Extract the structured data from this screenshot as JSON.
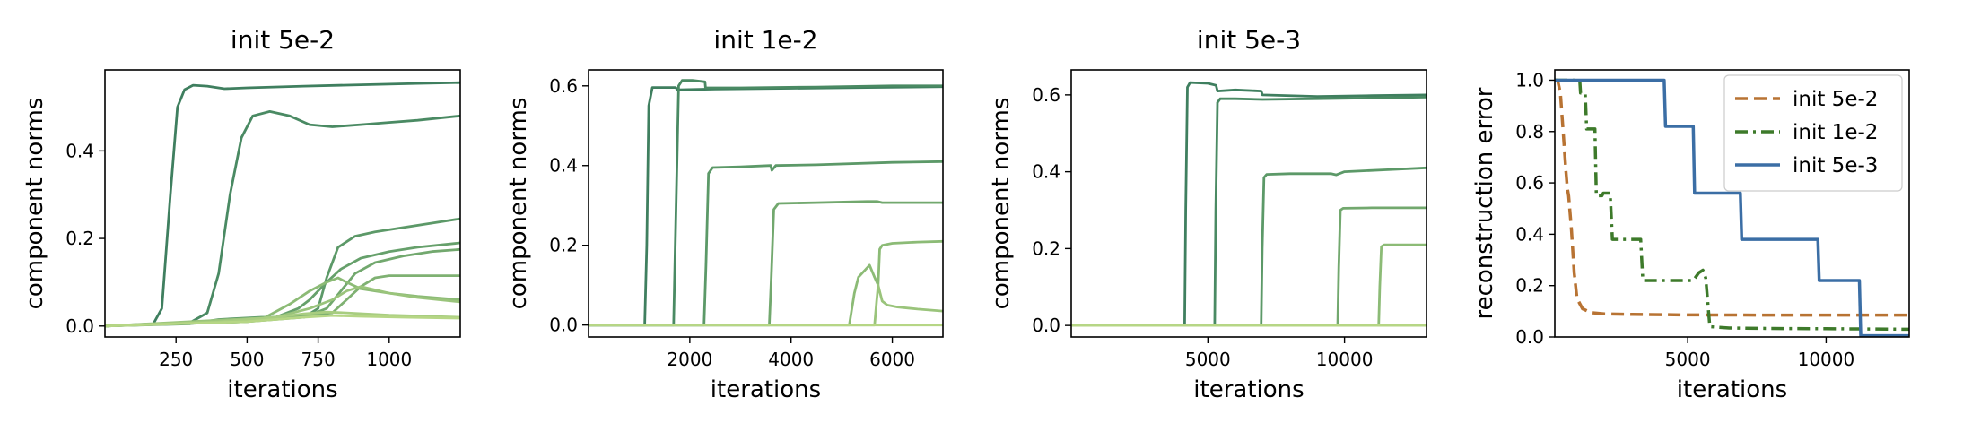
{
  "chart_data": [
    {
      "type": "line",
      "title": "init 5e-2",
      "xlabel": "iterations",
      "ylabel": "component norms",
      "xlim": [
        0,
        1250
      ],
      "ylim": [
        -0.025,
        0.585
      ],
      "xticks": [
        250,
        500,
        750,
        1000
      ],
      "xtick_labels": [
        "250",
        "500",
        "750",
        "1000"
      ],
      "yticks": [
        0,
        0.2,
        0.4
      ],
      "ytick_labels": [
        "0.0",
        "0.2",
        "0.4"
      ],
      "grid": false,
      "colors": [
        "#3f7f5f",
        "#4a8a63",
        "#5c9968",
        "#66a06b",
        "#72a86e",
        "#7fb172",
        "#8cbb76",
        "#9ac47b",
        "#a8cd80",
        "#b6d685"
      ],
      "series": [
        {
          "x": [
            0,
            170,
            200,
            230,
            255,
            280,
            310,
            360,
            420,
            500,
            700,
            900,
            1100,
            1250
          ],
          "y": [
            0,
            0.005,
            0.04,
            0.3,
            0.5,
            0.54,
            0.55,
            0.548,
            0.542,
            0.544,
            0.548,
            0.551,
            0.554,
            0.556
          ]
        },
        {
          "x": [
            0,
            300,
            360,
            400,
            440,
            480,
            520,
            580,
            650,
            720,
            800,
            900,
            1000,
            1100,
            1250
          ],
          "y": [
            0,
            0.008,
            0.03,
            0.12,
            0.3,
            0.43,
            0.48,
            0.49,
            0.48,
            0.46,
            0.455,
            0.46,
            0.465,
            0.47,
            0.48
          ]
        },
        {
          "x": [
            0,
            300,
            400,
            550,
            700,
            750,
            780,
            820,
            880,
            950,
            1050,
            1150,
            1250
          ],
          "y": [
            0,
            0.005,
            0.015,
            0.02,
            0.02,
            0.04,
            0.11,
            0.18,
            0.205,
            0.215,
            0.225,
            0.235,
            0.245
          ]
        },
        {
          "x": [
            0,
            400,
            600,
            680,
            720,
            780,
            830,
            900,
            1000,
            1100,
            1250
          ],
          "y": [
            0,
            0.01,
            0.02,
            0.04,
            0.06,
            0.1,
            0.13,
            0.155,
            0.17,
            0.18,
            0.19
          ]
        },
        {
          "x": [
            0,
            500,
            700,
            780,
            830,
            880,
            950,
            1050,
            1150,
            1250
          ],
          "y": [
            0,
            0.01,
            0.02,
            0.04,
            0.08,
            0.12,
            0.145,
            0.16,
            0.17,
            0.175
          ]
        },
        {
          "x": [
            0,
            500,
            800,
            850,
            900,
            950,
            1000,
            1100,
            1250
          ],
          "y": [
            0,
            0.01,
            0.03,
            0.06,
            0.09,
            0.11,
            0.115,
            0.115,
            0.115
          ]
        },
        {
          "x": [
            0,
            550,
            650,
            720,
            780,
            800,
            820,
            850,
            900,
            1000,
            1100,
            1250
          ],
          "y": [
            0,
            0.015,
            0.05,
            0.08,
            0.1,
            0.105,
            0.11,
            0.1,
            0.085,
            0.075,
            0.068,
            0.06
          ]
        },
        {
          "x": [
            0,
            600,
            720,
            800,
            850,
            900,
            1000,
            1100,
            1250
          ],
          "y": [
            0,
            0.02,
            0.04,
            0.06,
            0.08,
            0.09,
            0.075,
            0.065,
            0.055
          ]
        },
        {
          "x": [
            0,
            400,
            600,
            700,
            780,
            850,
            1000,
            1250
          ],
          "y": [
            0,
            0.01,
            0.02,
            0.028,
            0.032,
            0.03,
            0.025,
            0.02
          ]
        },
        {
          "x": [
            0,
            500,
            700,
            800,
            900,
            1050,
            1250
          ],
          "y": [
            0,
            0.01,
            0.02,
            0.024,
            0.022,
            0.02,
            0.018
          ]
        }
      ]
    },
    {
      "type": "line",
      "title": "init 1e-2",
      "xlabel": "iterations",
      "ylabel": "component norms",
      "xlim": [
        0,
        7000
      ],
      "ylim": [
        -0.03,
        0.64
      ],
      "xticks": [
        2000,
        4000,
        6000
      ],
      "xtick_labels": [
        "2000",
        "4000",
        "6000"
      ],
      "yticks": [
        0,
        0.2,
        0.4,
        0.6
      ],
      "ytick_labels": [
        "0.0",
        "0.2",
        "0.4",
        "0.6"
      ],
      "grid": false,
      "colors": [
        "#3f7f5f",
        "#4a8a63",
        "#5c9968",
        "#72a86e",
        "#8cbb76",
        "#9ac47b",
        "#b6d685"
      ],
      "series": [
        {
          "x": [
            0,
            1110,
            1150,
            1190,
            1260,
            1650,
            1720,
            1760,
            2500,
            4000,
            5500,
            7000
          ],
          "y": [
            0,
            0,
            0.2,
            0.55,
            0.596,
            0.596,
            0.596,
            0.59,
            0.592,
            0.594,
            0.596,
            0.598
          ]
        },
        {
          "x": [
            0,
            1680,
            1730,
            1780,
            1850,
            2050,
            2300,
            2310,
            3000,
            4500,
            6000,
            7000
          ],
          "y": [
            0,
            0,
            0.3,
            0.6,
            0.614,
            0.614,
            0.61,
            0.595,
            0.595,
            0.597,
            0.6,
            0.6
          ]
        },
        {
          "x": [
            0,
            2280,
            2320,
            2370,
            2450,
            3000,
            3600,
            3620,
            3700,
            4500,
            6000,
            7000
          ],
          "y": [
            0,
            0,
            0.15,
            0.38,
            0.395,
            0.397,
            0.4,
            0.388,
            0.4,
            0.402,
            0.408,
            0.41
          ]
        },
        {
          "x": [
            0,
            3570,
            3610,
            3660,
            3750,
            4500,
            5500,
            5700,
            5800,
            7000
          ],
          "y": [
            0,
            0,
            0.12,
            0.29,
            0.305,
            0.307,
            0.31,
            0.31,
            0.307,
            0.307
          ]
        },
        {
          "x": [
            0,
            5150,
            5250,
            5330,
            5550,
            5650,
            5720,
            5750,
            5800,
            6000,
            6500,
            7000
          ],
          "y": [
            0,
            0,
            0.08,
            0.12,
            0.15,
            0.12,
            0.1,
            0.19,
            0.2,
            0.205,
            0.208,
            0.21
          ]
        },
        {
          "x": [
            0,
            5650,
            5690,
            5720,
            5760,
            5800,
            5900,
            6100,
            6500,
            7000
          ],
          "y": [
            0,
            0,
            0.06,
            0.1,
            0.08,
            0.06,
            0.05,
            0.045,
            0.04,
            0.035
          ]
        },
        {
          "x": [
            0,
            7000
          ],
          "y": [
            0,
            0
          ]
        }
      ]
    },
    {
      "type": "line",
      "title": "init 5e-3",
      "xlabel": "iterations",
      "ylabel": "component norms",
      "xlim": [
        0,
        13000
      ],
      "ylim": [
        -0.03,
        0.665
      ],
      "xticks": [
        5000,
        10000
      ],
      "xtick_labels": [
        "5000",
        "10000"
      ],
      "yticks": [
        0,
        0.2,
        0.4,
        0.6
      ],
      "ytick_labels": [
        "0.0",
        "0.2",
        "0.4",
        "0.6"
      ],
      "grid": false,
      "colors": [
        "#3f7f5f",
        "#4a8a63",
        "#5c9968",
        "#72a86e",
        "#8cbb76",
        "#b6d685"
      ],
      "series": [
        {
          "x": [
            0,
            4150,
            4190,
            4250,
            4350,
            5000,
            5300,
            5350,
            6000,
            6950,
            7000,
            9000,
            11000,
            13000
          ],
          "y": [
            0,
            0,
            0.3,
            0.62,
            0.632,
            0.63,
            0.625,
            0.61,
            0.613,
            0.61,
            0.6,
            0.596,
            0.598,
            0.6
          ]
        },
        {
          "x": [
            0,
            5250,
            5290,
            5350,
            5450,
            6000,
            7000,
            9000,
            11000,
            13000
          ],
          "y": [
            0,
            0,
            0.3,
            0.58,
            0.59,
            0.59,
            0.588,
            0.59,
            0.592,
            0.594
          ]
        },
        {
          "x": [
            0,
            6950,
            6990,
            7050,
            7150,
            8000,
            9500,
            9700,
            10000,
            11500,
            13000
          ],
          "y": [
            0,
            0,
            0.2,
            0.385,
            0.393,
            0.395,
            0.395,
            0.392,
            0.4,
            0.405,
            0.41
          ]
        },
        {
          "x": [
            0,
            9750,
            9790,
            9850,
            9950,
            11000,
            13000
          ],
          "y": [
            0,
            0,
            0.15,
            0.3,
            0.305,
            0.306,
            0.306
          ]
        },
        {
          "x": [
            0,
            11250,
            11290,
            11350,
            11450,
            12000,
            13000
          ],
          "y": [
            0,
            0,
            0.1,
            0.205,
            0.21,
            0.21,
            0.21
          ]
        },
        {
          "x": [
            0,
            13000
          ],
          "y": [
            0,
            0
          ]
        }
      ]
    },
    {
      "type": "line",
      "title": "",
      "xlabel": "iterations",
      "ylabel": "reconstruction error",
      "xlim": [
        200,
        13000
      ],
      "ylim": [
        0,
        1.04
      ],
      "xticks": [
        5000,
        10000
      ],
      "xtick_labels": [
        "5000",
        "10000"
      ],
      "yticks": [
        0,
        0.2,
        0.4,
        0.6,
        0.8,
        1.0
      ],
      "ytick_labels": [
        "0.0",
        "0.2",
        "0.4",
        "0.6",
        "0.8",
        "1.0"
      ],
      "grid": false,
      "legend": "top-right",
      "series": [
        {
          "name": "init 5e-2",
          "color": "#b87333",
          "dash": "dashed",
          "x": [
            200,
            300,
            400,
            500,
            600,
            650,
            700,
            800,
            900,
            1000,
            1200,
            1500,
            2000,
            3000,
            5000,
            8000,
            13000
          ],
          "y": [
            1.0,
            1.0,
            0.95,
            0.8,
            0.65,
            0.58,
            0.55,
            0.42,
            0.25,
            0.15,
            0.11,
            0.095,
            0.09,
            0.088,
            0.086,
            0.085,
            0.085
          ]
        },
        {
          "name": "init 1e-2",
          "color": "#3d7a2a",
          "dash": "dashdot",
          "x": [
            200,
            1100,
            1130,
            1300,
            1350,
            1650,
            1700,
            1900,
            1950,
            2200,
            2280,
            3300,
            3380,
            5200,
            5400,
            5550,
            5650,
            5800,
            6500,
            8000,
            10000,
            13000
          ],
          "y": [
            1.0,
            1.0,
            0.95,
            0.95,
            0.81,
            0.81,
            0.55,
            0.55,
            0.56,
            0.56,
            0.38,
            0.38,
            0.22,
            0.22,
            0.25,
            0.26,
            0.23,
            0.04,
            0.035,
            0.033,
            0.032,
            0.03
          ]
        },
        {
          "name": "init 5e-3",
          "color": "#3b6ea5",
          "dash": "solid",
          "x": [
            200,
            4150,
            4200,
            5200,
            5250,
            6900,
            6950,
            9700,
            9750,
            11200,
            11250,
            13000
          ],
          "y": [
            1.0,
            1.0,
            0.82,
            0.82,
            0.56,
            0.56,
            0.38,
            0.38,
            0.22,
            0.22,
            0.005,
            0.005
          ]
        }
      ]
    }
  ]
}
